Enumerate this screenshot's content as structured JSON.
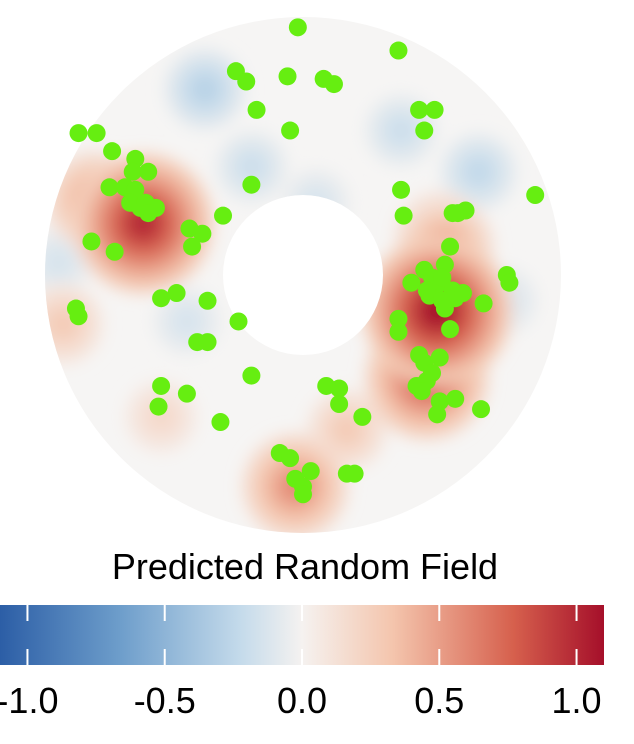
{
  "chart_data": {
    "type": "heatmap",
    "title": "",
    "domain_shape": "annulus",
    "legend": {
      "title": "Predicted Random Field",
      "placement": "bottom",
      "range": [
        -1.1,
        1.1
      ],
      "ticks": [
        "-1.0",
        "-0.5",
        "0.0",
        "0.5",
        "1.0"
      ],
      "tick_values": [
        -1.0,
        -0.5,
        0.0,
        0.5,
        1.0
      ],
      "colors": [
        "#2c5ea6",
        "#6e9ecb",
        "#c5dbeb",
        "#f5f2f0",
        "#f4c5ad",
        "#d6604d",
        "#a50f2a"
      ]
    },
    "hotspots": [
      {
        "x": -0.62,
        "y": 0.2,
        "value": 1.0
      },
      {
        "x": 0.52,
        "y": -0.14,
        "value": 1.1
      },
      {
        "x": 0.48,
        "y": -0.4,
        "value": 0.8
      },
      {
        "x": 0.55,
        "y": 0.11,
        "value": 0.5
      },
      {
        "x": 0.53,
        "y": 0.15,
        "value": 0.4
      },
      {
        "x": -0.03,
        "y": -0.82,
        "value": 0.6
      },
      {
        "x": -0.81,
        "y": 0.29,
        "value": 0.5
      },
      {
        "x": 0.17,
        "y": -0.6,
        "value": 0.3
      },
      {
        "x": -0.93,
        "y": -0.19,
        "value": 0.3
      },
      {
        "x": -0.55,
        "y": -0.55,
        "value": 0.2
      }
    ],
    "coldspots": [
      {
        "x": -0.38,
        "y": 0.72,
        "value": -0.3
      },
      {
        "x": 0.68,
        "y": 0.4,
        "value": -0.25
      },
      {
        "x": 0.38,
        "y": 0.56,
        "value": -0.2
      },
      {
        "x": -0.2,
        "y": 0.42,
        "value": -0.2
      },
      {
        "x": 0.78,
        "y": -0.1,
        "value": -0.15
      },
      {
        "x": -0.95,
        "y": 0.05,
        "value": -0.15
      },
      {
        "x": -0.45,
        "y": -0.18,
        "value": -0.15
      },
      {
        "x": 0.05,
        "y": 0.28,
        "value": -0.15
      }
    ],
    "observations": {
      "color": "#66ee11",
      "points": [
        [
          -0.02,
          0.96
        ],
        [
          0.37,
          0.87
        ],
        [
          -0.26,
          0.79
        ],
        [
          -0.22,
          0.75
        ],
        [
          -0.06,
          0.77
        ],
        [
          0.08,
          0.76
        ],
        [
          0.12,
          0.74
        ],
        [
          -0.18,
          0.64
        ],
        [
          0.45,
          0.64
        ],
        [
          0.51,
          0.64
        ],
        [
          -0.05,
          0.56
        ],
        [
          0.47,
          0.56
        ],
        [
          -0.87,
          0.55
        ],
        [
          -0.8,
          0.55
        ],
        [
          -0.74,
          0.48
        ],
        [
          -0.65,
          0.45
        ],
        [
          -0.66,
          0.4
        ],
        [
          -0.6,
          0.4
        ],
        [
          -0.75,
          0.34
        ],
        [
          -0.69,
          0.34
        ],
        [
          -0.65,
          0.33
        ],
        [
          -0.2,
          0.35
        ],
        [
          0.38,
          0.33
        ],
        [
          -0.67,
          0.28
        ],
        [
          -0.63,
          0.26
        ],
        [
          -0.61,
          0.28
        ],
        [
          -0.57,
          0.26
        ],
        [
          -0.6,
          0.24
        ],
        [
          0.9,
          0.31
        ],
        [
          0.63,
          0.25
        ],
        [
          0.58,
          0.24
        ],
        [
          0.6,
          0.24
        ],
        [
          0.39,
          0.23
        ],
        [
          -0.31,
          0.23
        ],
        [
          -0.44,
          0.18
        ],
        [
          -0.82,
          0.13
        ],
        [
          -0.73,
          0.09
        ],
        [
          -0.43,
          0.11
        ],
        [
          -0.39,
          0.16
        ],
        [
          0.57,
          0.11
        ],
        [
          0.55,
          0.04
        ],
        [
          0.79,
          0.0
        ],
        [
          0.8,
          -0.03
        ],
        [
          0.47,
          0.02
        ],
        [
          0.5,
          -0.01
        ],
        [
          0.52,
          -0.04
        ],
        [
          0.54,
          -0.01
        ],
        [
          0.42,
          -0.03
        ],
        [
          0.58,
          -0.06
        ],
        [
          0.59,
          -0.09
        ],
        [
          0.62,
          -0.07
        ],
        [
          0.49,
          -0.08
        ],
        [
          0.48,
          -0.06
        ],
        [
          0.54,
          -0.1
        ],
        [
          0.55,
          -0.13
        ],
        [
          0.7,
          -0.11
        ],
        [
          -0.55,
          -0.09
        ],
        [
          -0.49,
          -0.07
        ],
        [
          -0.37,
          -0.1
        ],
        [
          -0.25,
          -0.18
        ],
        [
          0.37,
          -0.17
        ],
        [
          0.37,
          -0.22
        ],
        [
          0.57,
          -0.21
        ],
        [
          -0.88,
          -0.13
        ],
        [
          -0.87,
          -0.16
        ],
        [
          -0.41,
          -0.26
        ],
        [
          -0.37,
          -0.26
        ],
        [
          0.45,
          -0.31
        ],
        [
          0.47,
          -0.34
        ],
        [
          0.53,
          -0.32
        ],
        [
          -0.2,
          -0.39
        ],
        [
          0.09,
          -0.43
        ],
        [
          0.14,
          -0.44
        ],
        [
          0.5,
          -0.38
        ],
        [
          0.48,
          -0.41
        ],
        [
          0.44,
          -0.43
        ],
        [
          0.46,
          -0.45
        ],
        [
          -0.55,
          -0.43
        ],
        [
          -0.45,
          -0.46
        ],
        [
          -0.56,
          -0.51
        ],
        [
          0.14,
          -0.5
        ],
        [
          0.53,
          -0.49
        ],
        [
          0.59,
          -0.48
        ],
        [
          0.52,
          -0.54
        ],
        [
          -0.32,
          -0.57
        ],
        [
          0.23,
          -0.55
        ],
        [
          0.69,
          -0.52
        ],
        [
          -0.09,
          -0.69
        ],
        [
          -0.05,
          -0.71
        ],
        [
          0.03,
          -0.76
        ],
        [
          0.17,
          -0.77
        ],
        [
          0.2,
          -0.77
        ],
        [
          -0.03,
          -0.79
        ],
        [
          0.0,
          -0.82
        ],
        [
          0.0,
          -0.85
        ]
      ]
    }
  }
}
